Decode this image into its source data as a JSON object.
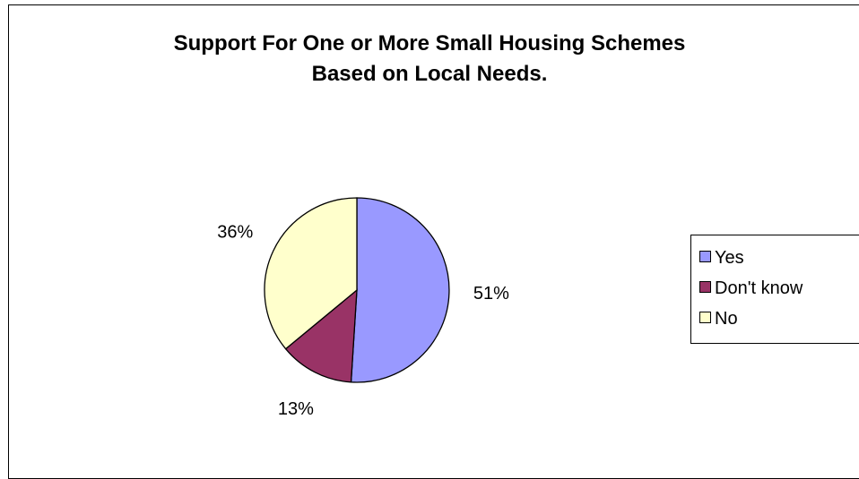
{
  "chart_data": {
    "type": "pie",
    "title_lines": [
      "Support For One or More Small Housing Schemes",
      "Based on Local Needs."
    ],
    "slices": [
      {
        "name": "Yes",
        "value": 51,
        "label": "51%",
        "color": "#9999ff"
      },
      {
        "name": "Don't know",
        "value": 13,
        "label": "13%",
        "color": "#993366"
      },
      {
        "name": "No",
        "value": 36,
        "label": "36%",
        "color": "#ffffcc"
      }
    ],
    "legend": {
      "position": "right",
      "entries": [
        "Yes",
        "Don't know",
        "No"
      ]
    }
  }
}
